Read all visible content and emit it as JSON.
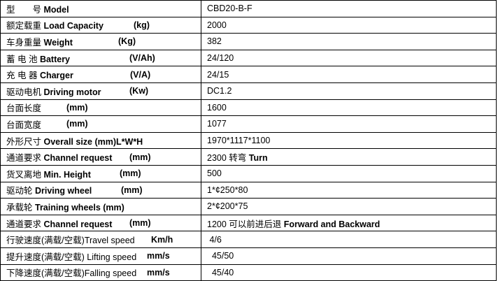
{
  "rows": [
    {
      "cn": "型　　号",
      "en": "Model",
      "unit": "",
      "value": "CBD20-B-F"
    },
    {
      "cn": "额定载重 ",
      "en": "Load Capacity",
      "unit": "(kg)",
      "value": "2000"
    },
    {
      "cn": "车身重量",
      "en": "Weight",
      "unit": "(Kg)",
      "value": "382"
    },
    {
      "cn": "蓄 电 池",
      "en": "Battery",
      "unit": "(V/Ah)",
      "value": "24/120"
    },
    {
      "cn": "充 电 器",
      "en": "Charger",
      "unit": "(V/A)",
      "value": "24/15"
    },
    {
      "cn": "驱动电机",
      "en": "Driving motor",
      "unit": "(Kw)",
      "value": "DC1.2"
    },
    {
      "cn": "台面长度",
      "en": "",
      "unit": "(mm)",
      "value": "1600"
    },
    {
      "cn": "台面宽度",
      "en": "",
      "unit": "(mm)",
      "value": "1077"
    },
    {
      "cn": "外形尺寸",
      "en": "Overall size (mm)L*W*H",
      "unit": "",
      "value": "1970*1117*1100"
    },
    {
      "cn": "通道要求 ",
      "en": "Channel request",
      "unit": "(mm)",
      "value": "2300 转弯 ",
      "value_bold": "Turn"
    },
    {
      "cn": "货叉离地",
      "en": "Min. Height",
      "unit": "(mm)",
      "value": "500"
    },
    {
      "cn": "驱动轮 ",
      "en": "Driving wheel",
      "unit": "(mm)",
      "value": "1*¢250*80"
    },
    {
      "cn": "承载轮",
      "en": "Training wheels (mm)",
      "unit": "",
      "value": "2*¢200*75"
    },
    {
      "cn": "通道要求 ",
      "en": "Channel request",
      "unit": "(mm)",
      "value": "1200 可以前进后退 ",
      "value_bold": "Forward and Backward"
    },
    {
      "cn": "行驶速度(满载/空载)Travel speed",
      "en": "",
      "unit": "Km/h",
      "value": " 4/6"
    },
    {
      "cn": "提升速度(满载/空载) Lifting speed",
      "en": "",
      "unit": "mm/s",
      "value": "  45/50"
    },
    {
      "cn": "下降速度(满载/空载)Falling speed",
      "en": "",
      "unit": "mm/s",
      "value": "  45/40"
    }
  ]
}
